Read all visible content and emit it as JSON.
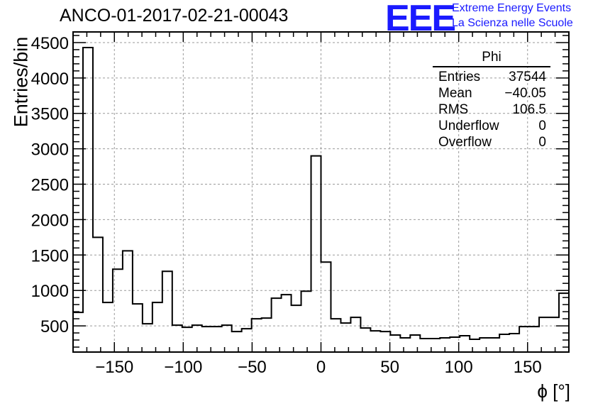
{
  "header": {
    "title": "ANCO-01-2017-02-21-00043",
    "logo": "EEE",
    "logo_line1": "Extreme Energy Events",
    "logo_line2": "La Scienza nelle Scuole"
  },
  "stats_box": {
    "name": "Phi",
    "rows": [
      {
        "label": "Entries",
        "value": "37544"
      },
      {
        "label": "Mean",
        "value": "−40.05"
      },
      {
        "label": "RMS",
        "value": "106.5"
      },
      {
        "label": "Underflow",
        "value": "0"
      },
      {
        "label": "Overflow",
        "value": "0"
      }
    ]
  },
  "chart_data": {
    "type": "bar",
    "histogram": true,
    "title": "ANCO-01-2017-02-21-00043",
    "xlabel": "ϕ [°]",
    "ylabel": "Entries/bin",
    "xlim": [
      -180,
      180
    ],
    "ylim": [
      130,
      4650
    ],
    "grid": true,
    "bin_width": 7.2,
    "x_ticks": [
      -150,
      -100,
      -50,
      0,
      50,
      100,
      150
    ],
    "y_ticks": [
      500,
      1000,
      1500,
      2000,
      2500,
      3000,
      3500,
      4000,
      4500
    ],
    "x_tick_labels": [
      "−150",
      "−100",
      "−50",
      "0",
      "50",
      "100",
      "150"
    ],
    "y_tick_labels": [
      "500",
      "1000",
      "1500",
      "2000",
      "2500",
      "3000",
      "3500",
      "4000",
      "4500"
    ],
    "values": [
      690,
      4430,
      1750,
      830,
      1300,
      1560,
      810,
      530,
      830,
      1270,
      510,
      480,
      510,
      490,
      490,
      510,
      420,
      460,
      600,
      610,
      890,
      940,
      790,
      990,
      2900,
      1400,
      600,
      540,
      620,
      470,
      430,
      420,
      370,
      330,
      370,
      320,
      320,
      330,
      340,
      360,
      310,
      330,
      330,
      380,
      390,
      490,
      490,
      620,
      620,
      960
    ],
    "line_color": "#000000",
    "grid_color": "#9a9a9a"
  }
}
